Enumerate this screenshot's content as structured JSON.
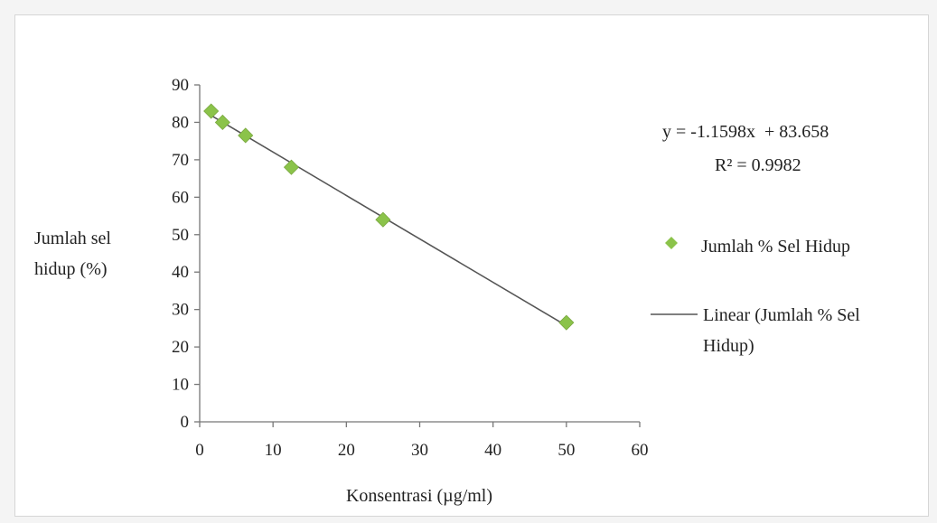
{
  "chart_data": {
    "type": "scatter",
    "title": "",
    "xlabel": "Konsentrasi (µg/ml)",
    "ylabel_lines": [
      "Jumlah sel",
      "hidup (%)"
    ],
    "xlim": [
      0,
      60
    ],
    "ylim": [
      0,
      90
    ],
    "xticks": [
      "0",
      "10",
      "20",
      "30",
      "40",
      "50",
      "60"
    ],
    "yticks": [
      "0",
      "10",
      "20",
      "30",
      "40",
      "50",
      "60",
      "70",
      "80",
      "90"
    ],
    "grid": false,
    "legend_position": "right",
    "series": [
      {
        "name": "Jumlah % Sel Hidup",
        "marker": "diamond",
        "color": "#8bc34a",
        "points": [
          {
            "x": 1.56,
            "y": 83
          },
          {
            "x": 3.125,
            "y": 80
          },
          {
            "x": 6.25,
            "y": 76.5
          },
          {
            "x": 12.5,
            "y": 68
          },
          {
            "x": 25,
            "y": 54
          },
          {
            "x": 50,
            "y": 26.5
          }
        ]
      }
    ],
    "trendline": {
      "name_lines": [
        "Linear (Jumlah % Sel",
        "Hidup)"
      ],
      "type": "linear",
      "slope": -1.1598,
      "intercept": 83.658,
      "x_range": [
        1.56,
        50
      ],
      "color": "#555555"
    },
    "equation_label": "y = -1.1598x  + 83.658",
    "r2_label": "R² = 0.9982"
  }
}
